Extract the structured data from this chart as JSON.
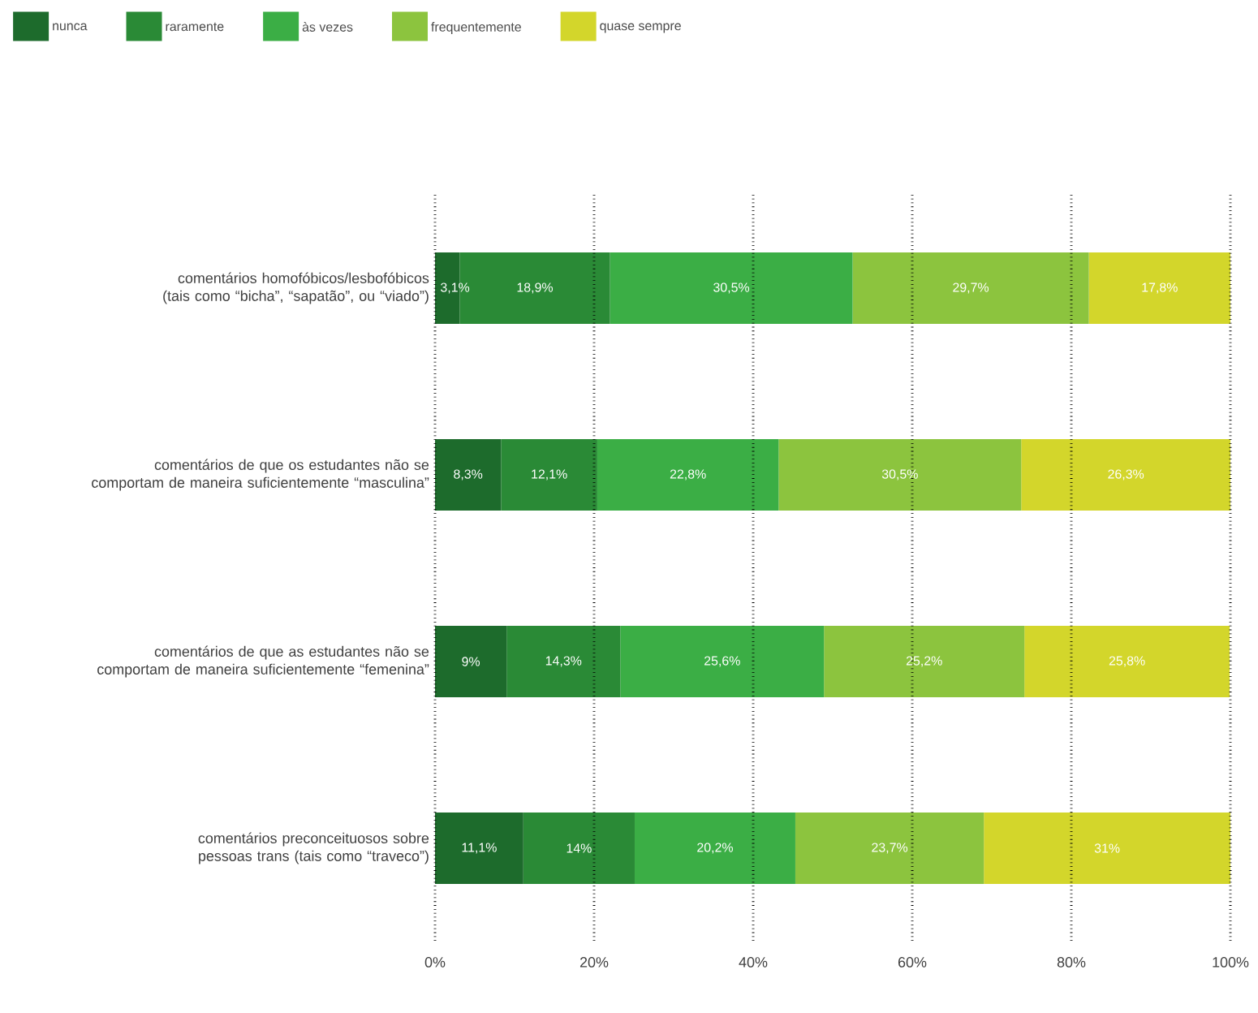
{
  "chart_data": {
    "type": "bar",
    "orientation": "horizontal",
    "stacked": true,
    "grid": "x",
    "legend": "top left",
    "categories": [
      "comentários homofóbicos/lesbofóbicos (tais como “bicha”, “sapatão”, ou “viado”)",
      "comentários de que os estudantes não se comportam de maneira suficientemente “masculina”",
      "comentários de que as estudantes não se comportam de maneira suficientemente “femenina”",
      "comentários preconceituosos sobre pessoas trans (tais como “traveco”)"
    ],
    "series": [
      {
        "name": "nunca",
        "color": "#1d6b2c",
        "values": [
          3.1,
          8.3,
          9,
          11.1
        ],
        "value_labels": [
          "3,1%",
          "8,3%",
          "9%",
          "11,1%"
        ]
      },
      {
        "name": "raramente",
        "color": "#2a8a36",
        "values": [
          18.9,
          12.1,
          14.3,
          14
        ],
        "value_labels": [
          "18,9%",
          "12,1%",
          "14,3%",
          "14%"
        ]
      },
      {
        "name": "às vezes",
        "color": "#3bae45",
        "values": [
          30.5,
          22.8,
          25.6,
          20.2
        ],
        "value_labels": [
          "30,5%",
          "22,8%",
          "25,6%",
          "20,2%"
        ]
      },
      {
        "name": "frequentemente",
        "color": "#8cc43e",
        "values": [
          29.7,
          30.5,
          25.2,
          23.7
        ],
        "value_labels": [
          "29,7%",
          "30,5%",
          "25,2%",
          "23,7%"
        ]
      },
      {
        "name": "quase sempre",
        "color": "#d3d62b",
        "values": [
          17.8,
          26.3,
          25.8,
          31
        ],
        "value_labels": [
          "17,8%",
          "26,3%",
          "25,8%",
          "31%"
        ]
      }
    ],
    "xlim": [
      0,
      100
    ],
    "xticks": [
      {
        "value": 0,
        "label": "0%"
      },
      {
        "value": 20,
        "label": "20%"
      },
      {
        "value": 40,
        "label": "40%"
      },
      {
        "value": 60,
        "label": "60%"
      },
      {
        "value": 80,
        "label": "80%"
      },
      {
        "value": 100,
        "label": "100%"
      }
    ]
  }
}
